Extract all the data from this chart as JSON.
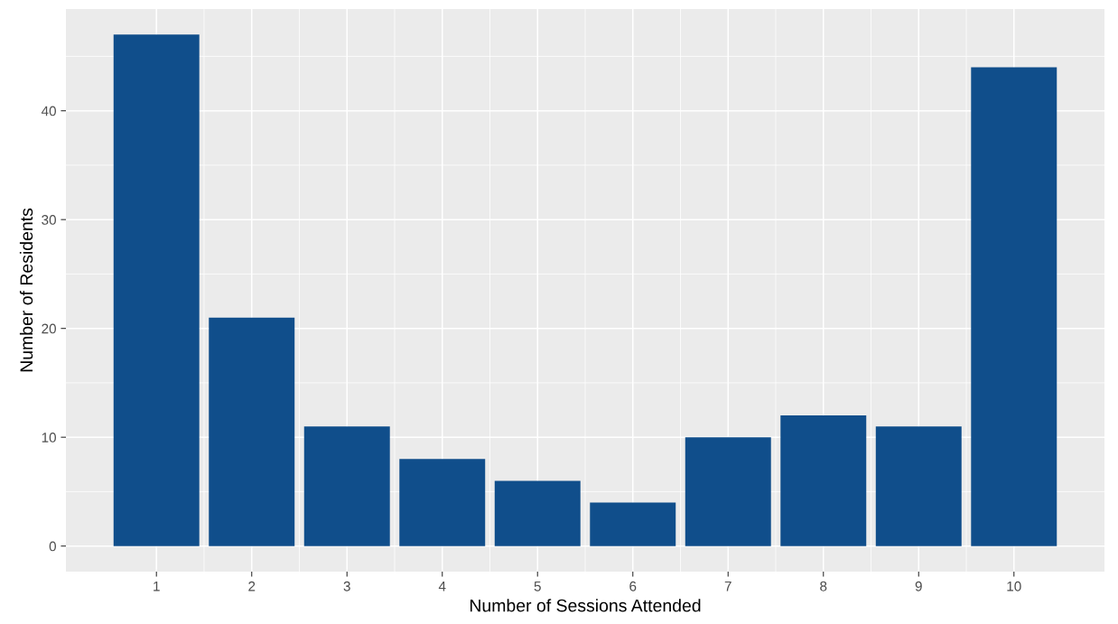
{
  "chart_data": {
    "type": "bar",
    "xlabel": "Number of Sessions Attended",
    "ylabel": "Number of Residents",
    "x": [
      1,
      2,
      3,
      4,
      5,
      6,
      7,
      8,
      9,
      10
    ],
    "values": [
      47,
      21,
      11,
      8,
      6,
      4,
      10,
      12,
      11,
      44
    ],
    "color": "#104e8b",
    "xlim": [
      0.05,
      10.95
    ],
    "xticks": [
      1,
      2,
      3,
      4,
      5,
      6,
      7,
      8,
      9,
      10
    ],
    "ylim": [
      -2.35,
      49.35
    ],
    "yticks": [
      0,
      10,
      20,
      30,
      40
    ],
    "grid": true
  }
}
